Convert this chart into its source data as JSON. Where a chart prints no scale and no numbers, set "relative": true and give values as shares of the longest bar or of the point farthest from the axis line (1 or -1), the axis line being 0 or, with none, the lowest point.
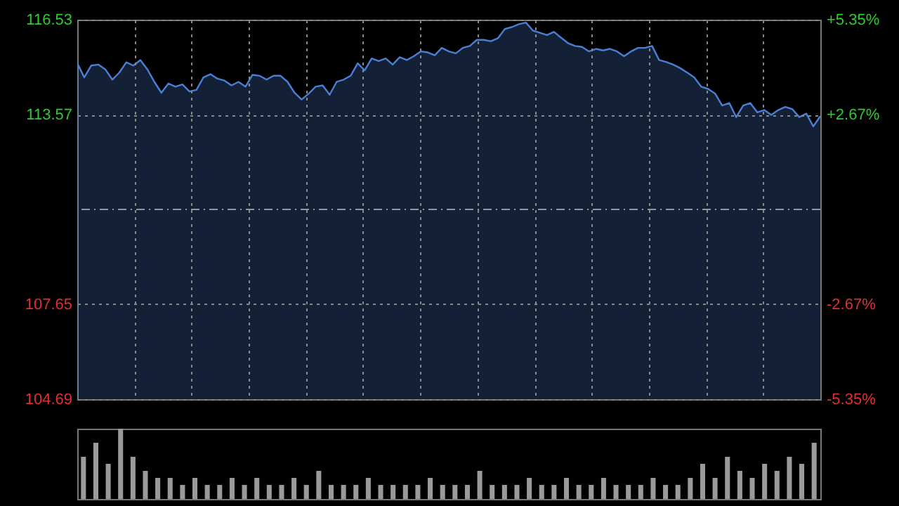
{
  "chart_data": [
    {
      "type": "area",
      "categories": [
        null,
        null,
        null,
        null,
        null,
        null,
        null,
        null,
        null,
        null,
        null,
        null,
        null,
        null,
        null,
        null,
        null,
        null,
        null,
        null,
        null,
        null,
        null,
        null,
        null,
        null,
        null,
        null,
        null,
        null,
        null,
        null,
        null,
        null,
        null,
        null,
        null,
        null,
        null,
        null,
        null,
        null,
        null,
        null,
        null,
        null,
        null,
        null,
        null,
        null,
        null,
        null,
        null,
        null,
        null,
        null,
        null,
        null,
        null,
        null,
        null,
        null,
        null,
        null,
        null,
        null,
        null,
        null,
        null,
        null,
        null,
        null,
        null,
        null,
        null,
        null,
        null,
        null,
        null,
        null,
        null,
        null,
        null,
        null,
        null,
        null,
        null,
        null,
        null,
        null,
        null,
        null,
        null,
        null,
        null,
        null,
        null,
        null,
        null,
        null,
        null,
        null,
        null,
        null,
        null,
        null,
        null
      ],
      "series": [
        {
          "color": "#4a7fd4",
          "values": [
            115.17,
            114.73,
            115.1,
            115.13,
            114.98,
            114.66,
            114.88,
            115.2,
            115.1,
            115.27,
            114.98,
            114.59,
            114.25,
            114.54,
            114.44,
            114.51,
            114.29,
            114.34,
            114.73,
            114.83,
            114.69,
            114.63,
            114.48,
            114.59,
            114.44,
            114.81,
            114.78,
            114.66,
            114.78,
            114.78,
            114.59,
            114.25,
            114.04,
            114.22,
            114.44,
            114.48,
            114.19,
            114.59,
            114.66,
            114.78,
            115.17,
            114.95,
            115.32,
            115.24,
            115.32,
            115.13,
            115.36,
            115.27,
            115.39,
            115.54,
            115.51,
            115.42,
            115.65,
            115.54,
            115.48,
            115.65,
            115.71,
            115.9,
            115.9,
            115.86,
            115.95,
            116.24,
            116.3,
            116.39,
            116.44,
            116.19,
            116.12,
            116.05,
            116.15,
            115.97,
            115.8,
            115.71,
            115.68,
            115.54,
            115.62,
            115.57,
            115.62,
            115.54,
            115.39,
            115.54,
            115.65,
            115.65,
            115.71,
            115.27,
            115.21,
            115.13,
            115.02,
            114.88,
            114.73,
            114.44,
            114.37,
            114.22,
            113.85,
            113.93,
            113.49,
            113.85,
            113.93,
            113.64,
            113.71,
            113.56,
            113.71,
            113.81,
            113.74,
            113.49,
            113.6,
            113.2,
            113.52
          ]
        }
      ],
      "ylim": [
        104.69,
        116.53
      ],
      "yticks": [
        104.69,
        107.65,
        113.57,
        116.53
      ],
      "y2lim": [
        -5.35,
        5.35
      ],
      "y2ticks": [
        {
          "value": -5.35,
          "label": "-5.35%"
        },
        {
          "value": -2.67,
          "label": "-2.67%"
        },
        {
          "value": 2.67,
          "label": "+2.67%"
        },
        {
          "value": 5.35,
          "label": "+5.35%"
        }
      ],
      "ref_lines": [
        {
          "axis": "y2",
          "value": 0,
          "color": "#8899aa",
          "line_style": "dashed"
        }
      ],
      "grid": true,
      "marker": "none",
      "line_style": "solid"
    },
    {
      "type": "bar",
      "relative": true,
      "categories": [
        null,
        null,
        null,
        null,
        null,
        null,
        null,
        null,
        null,
        null,
        null,
        null,
        null,
        null,
        null,
        null,
        null,
        null,
        null,
        null,
        null,
        null,
        null,
        null,
        null,
        null,
        null,
        null,
        null,
        null,
        null,
        null,
        null,
        null,
        null,
        null,
        null,
        null,
        null,
        null,
        null,
        null,
        null,
        null,
        null,
        null,
        null,
        null,
        null,
        null,
        null,
        null,
        null,
        null,
        null,
        null,
        null,
        null,
        null,
        null
      ],
      "series": [
        {
          "color": "#9a9a9a",
          "values": [
            0.6,
            0.8,
            0.5,
            1.0,
            0.6,
            0.4,
            0.3,
            0.3,
            0.2,
            0.3,
            0.2,
            0.2,
            0.3,
            0.2,
            0.3,
            0.2,
            0.2,
            0.3,
            0.2,
            0.4,
            0.2,
            0.2,
            0.2,
            0.3,
            0.2,
            0.2,
            0.2,
            0.2,
            0.3,
            0.2,
            0.2,
            0.2,
            0.4,
            0.2,
            0.2,
            0.2,
            0.3,
            0.2,
            0.2,
            0.3,
            0.2,
            0.2,
            0.3,
            0.2,
            0.2,
            0.2,
            0.3,
            0.2,
            0.2,
            0.3,
            0.5,
            0.3,
            0.6,
            0.4,
            0.3,
            0.5,
            0.4,
            0.6,
            0.5,
            0.8
          ]
        }
      ]
    }
  ]
}
